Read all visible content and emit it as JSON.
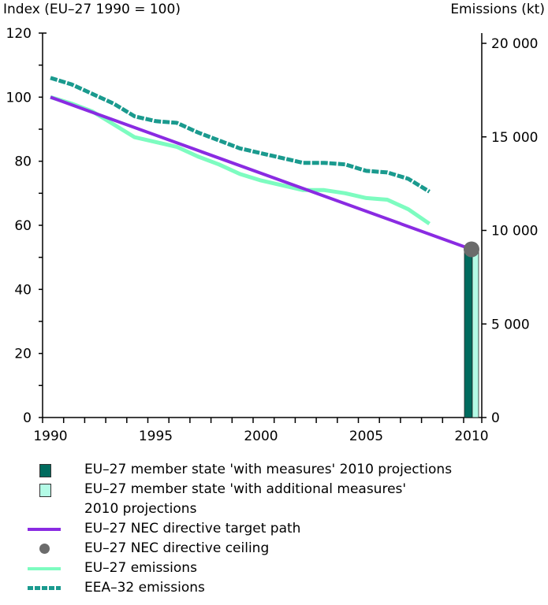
{
  "chart_data": {
    "type": "line",
    "title": "",
    "left_axis_title": "Index (EU–27 1990 = 100)",
    "right_axis_title": "Emissions (kt)",
    "xlabel": "",
    "ylabel": "Index (EU–27 1990 = 100)",
    "y2label": "Emissions (kt)",
    "xlim": [
      1990,
      2010
    ],
    "ylim": [
      0,
      120
    ],
    "y2lim": [
      0,
      20000
    ],
    "x_ticks": [
      "1990",
      "1995",
      "2000",
      "2005",
      "2010"
    ],
    "y_ticks": [
      "0",
      "20",
      "40",
      "60",
      "80",
      "100",
      "120"
    ],
    "y2_ticks": [
      "0",
      "5 000",
      "10 000",
      "15 000",
      "20 000"
    ],
    "grid": false,
    "legend_position": "bottom",
    "series": [
      {
        "name": "EU–27 NEC directive target path",
        "type": "line",
        "color": "#8a2be2",
        "x": [
          1990,
          2010
        ],
        "values": [
          100,
          52.5
        ]
      },
      {
        "name": "EU–27 emissions",
        "type": "line",
        "color": "#7dfcc0",
        "x": [
          1990,
          1991,
          1992,
          1993,
          1994,
          1995,
          1996,
          1997,
          1998,
          1999,
          2000,
          2001,
          2002,
          2003,
          2004,
          2005,
          2006,
          2007,
          2008
        ],
        "values": [
          100,
          98,
          95.5,
          91.5,
          87.5,
          86,
          84.5,
          81.5,
          79,
          76,
          74,
          72.5,
          71,
          71,
          70,
          68.5,
          68,
          65,
          60.5
        ]
      },
      {
        "name": "EEA–32 emissions",
        "type": "dashed-line",
        "color": "#1a9a8e",
        "x": [
          1990,
          1991,
          1992,
          1993,
          1994,
          1995,
          1996,
          1997,
          1998,
          1999,
          2000,
          2001,
          2002,
          2003,
          2004,
          2005,
          2006,
          2007,
          2008
        ],
        "values": [
          106,
          104,
          101,
          98,
          94,
          92.5,
          92,
          89,
          86.5,
          84,
          82.5,
          81,
          79.5,
          79.5,
          79,
          77,
          76.5,
          74.5,
          70.5
        ]
      },
      {
        "name": "EU–27 member state 'with measures' 2010 projections",
        "type": "bar",
        "color": "#006b5e",
        "x": [
          2010
        ],
        "values": [
          52.5
        ]
      },
      {
        "name": "EU–27 member state 'with additional measures' 2010 projections",
        "type": "bar",
        "color": "#b3fbe6",
        "x": [
          2010
        ],
        "values": [
          52.5
        ]
      },
      {
        "name": "EU–27 NEC directive ceiling",
        "type": "point",
        "color": "#6b6b6b",
        "x": [
          2010
        ],
        "values": [
          52.5
        ]
      }
    ]
  },
  "legend": [
    {
      "label": "EU–27 member state 'with measures' 2010 projections",
      "kind": "box",
      "color": "#006b5e"
    },
    {
      "label": "EU–27 member state 'with additional measures'\n2010 projections",
      "kind": "box",
      "color": "#b3fbe6"
    },
    {
      "label": "EU–27 NEC directive target path",
      "kind": "line",
      "color": "#8a2be2"
    },
    {
      "label": "EU–27 NEC directive ceiling",
      "kind": "dot",
      "color": "#6b6b6b"
    },
    {
      "label": "EU–27 emissions",
      "kind": "line",
      "color": "#7dfcc0"
    },
    {
      "label": "EEA–32 emissions",
      "kind": "dash",
      "color": "#1a9a8e"
    }
  ]
}
